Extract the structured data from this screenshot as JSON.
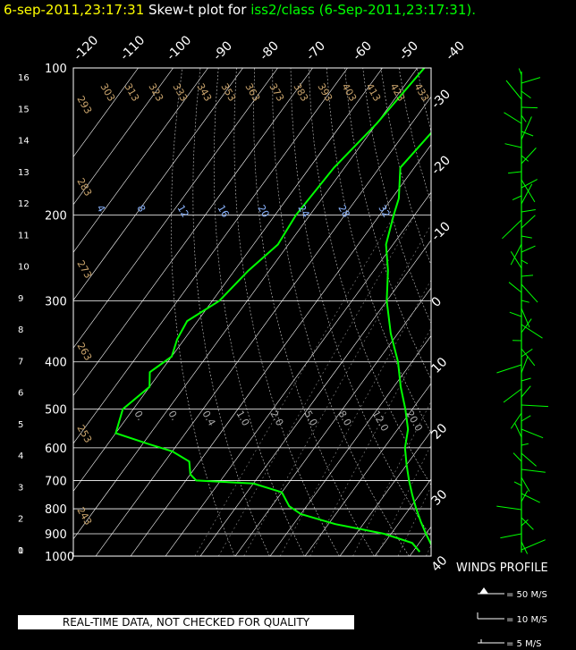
{
  "title": {
    "timestamp": "6-sep-2011,23:17:31",
    "prefix": "Skew-t plot for",
    "source": "iss2/class (6-Sep-2011,23:17:31)",
    "suffix": "."
  },
  "disclaimer": "REAL-TIME DATA, NOT CHECKED FOR QUALITY",
  "winds_profile": {
    "title": "WINDS PROFILE",
    "legend": [
      "= 50 M/S",
      "= 10 M/S",
      "= 5 M/S"
    ]
  },
  "chart_data": {
    "type": "line",
    "subtype": "skew-t",
    "pressure_labels": [
      "100",
      "200",
      "300",
      "400",
      "500",
      "600",
      "700",
      "800",
      "900",
      "1000"
    ],
    "pressure_values": [
      100,
      200,
      300,
      400,
      500,
      600,
      700,
      800,
      900,
      1000
    ],
    "height_labels": [
      "16",
      "15",
      "14",
      "13",
      "12",
      "11",
      "10",
      "9",
      "8",
      "7",
      "6",
      "5",
      "4",
      "3",
      "2",
      "1",
      "0"
    ],
    "top_temp_labels": [
      "-120",
      "-110",
      "-100",
      "-90",
      "-80",
      "-70",
      "-60",
      "-50",
      "-40"
    ],
    "right_temp_labels": [
      "-30",
      "-20",
      "-10",
      "0",
      "10",
      "20",
      "30",
      "40"
    ],
    "dry_adiabat_labels": [
      "303",
      "313",
      "323",
      "333",
      "343",
      "353",
      "363",
      "373",
      "383",
      "393",
      "403",
      "413",
      "423",
      "433",
      "293",
      "283",
      "273",
      "263",
      "253",
      "243"
    ],
    "mixing_ratio_labels_upper": [
      "4",
      "8",
      "12",
      "16",
      "20",
      "24",
      "28",
      "32"
    ],
    "mixing_ratio_labels_lower": [
      "0.",
      "0.",
      "0.4",
      "1.0",
      "2.0",
      "5.0",
      "8.0",
      "12.0",
      "20.0"
    ],
    "series": [
      {
        "name": "temperature",
        "color": "#00ff00",
        "points": [
          [
            100,
            -61
          ],
          [
            130,
            -62
          ],
          [
            160,
            -64
          ],
          [
            185,
            -58
          ],
          [
            200,
            -56
          ],
          [
            230,
            -52
          ],
          [
            260,
            -46
          ],
          [
            300,
            -40
          ],
          [
            350,
            -32
          ],
          [
            400,
            -24
          ],
          [
            450,
            -18
          ],
          [
            500,
            -12
          ],
          [
            550,
            -7
          ],
          [
            600,
            -4
          ],
          [
            650,
            0
          ],
          [
            700,
            4
          ],
          [
            750,
            8
          ],
          [
            800,
            12
          ],
          [
            850,
            16
          ],
          [
            900,
            20
          ],
          [
            950,
            24
          ],
          [
            1000,
            30
          ]
        ]
      },
      {
        "name": "dewpoint",
        "color": "#00ff00",
        "points": [
          [
            100,
            -78
          ],
          [
            130,
            -80
          ],
          [
            160,
            -83
          ],
          [
            200,
            -84
          ],
          [
            230,
            -83
          ],
          [
            260,
            -86
          ],
          [
            300,
            -88
          ],
          [
            330,
            -93
          ],
          [
            360,
            -92
          ],
          [
            390,
            -90
          ],
          [
            420,
            -93
          ],
          [
            450,
            -90
          ],
          [
            500,
            -93
          ],
          [
            560,
            -90
          ],
          [
            590,
            -78
          ],
          [
            610,
            -70
          ],
          [
            640,
            -63
          ],
          [
            680,
            -60
          ],
          [
            700,
            -57
          ],
          [
            710,
            -40
          ],
          [
            740,
            -30
          ],
          [
            790,
            -25
          ],
          [
            820,
            -20
          ],
          [
            860,
            -8
          ],
          [
            900,
            8
          ],
          [
            940,
            18
          ],
          [
            980,
            22
          ]
        ]
      }
    ]
  }
}
